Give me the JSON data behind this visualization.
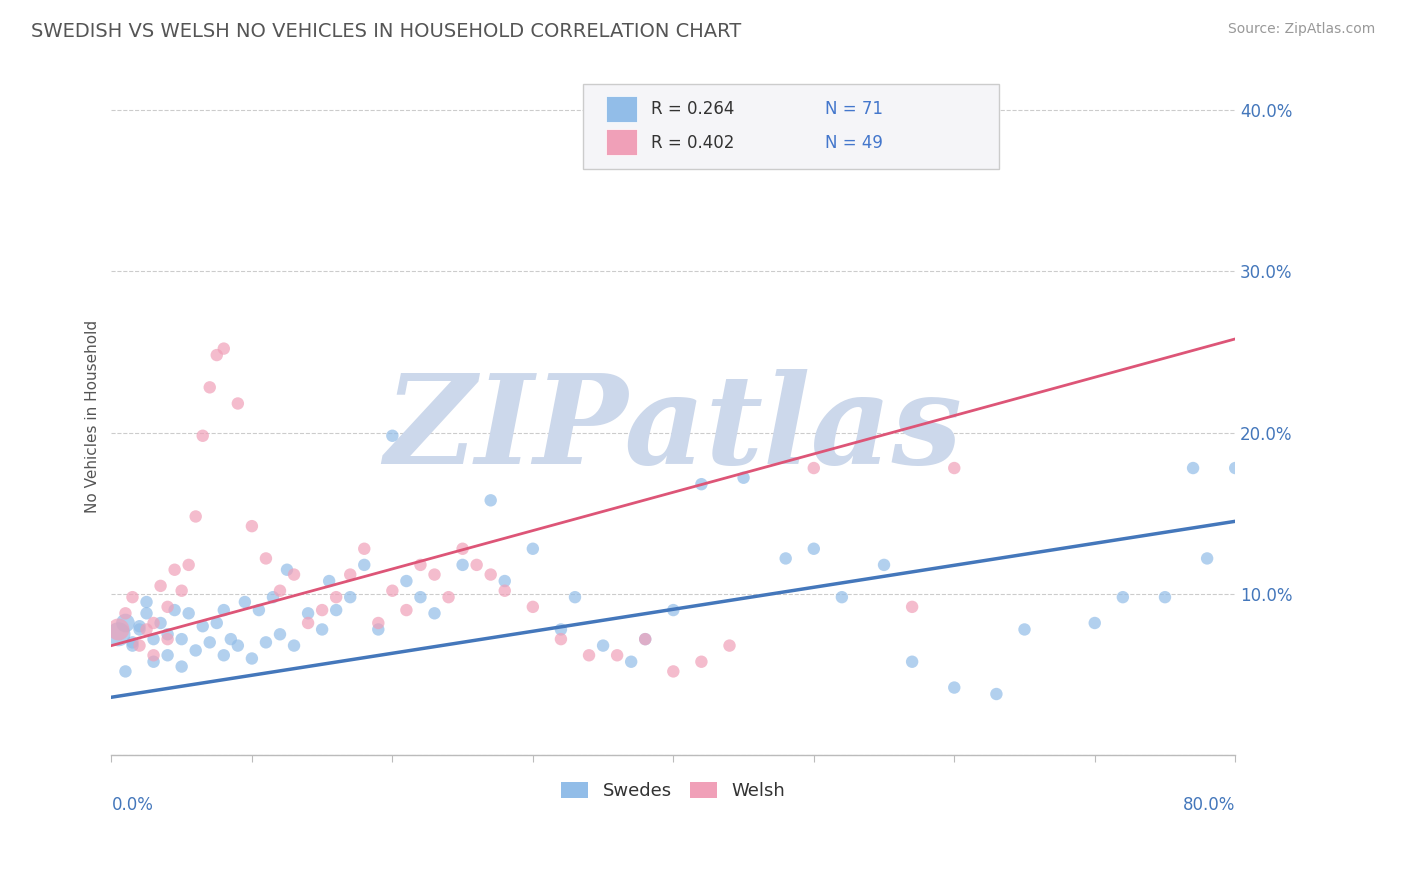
{
  "title": "SWEDISH VS WELSH NO VEHICLES IN HOUSEHOLD CORRELATION CHART",
  "source_text": "Source: ZipAtlas.com",
  "ylabel": "No Vehicles in Household",
  "xlim": [
    0.0,
    0.8
  ],
  "ylim": [
    0.0,
    0.42
  ],
  "yticks": [
    0.0,
    0.1,
    0.2,
    0.3,
    0.4
  ],
  "ytick_labels": [
    "",
    "10.0%",
    "20.0%",
    "30.0%",
    "40.0%"
  ],
  "xticks": [
    0.0,
    0.1,
    0.2,
    0.3,
    0.4,
    0.5,
    0.6,
    0.7,
    0.8
  ],
  "background_color": "#ffffff",
  "grid_color": "#cccccc",
  "watermark_text": "ZIPatlas",
  "watermark_color": "#ccd8eb",
  "blue_color": "#92bde8",
  "pink_color": "#f0a0b8",
  "line_blue": "#4477bb",
  "line_pink": "#dd5577",
  "legend_R_blue": "R = 0.264",
  "legend_N_blue": "N = 71",
  "legend_R_pink": "R = 0.402",
  "legend_N_pink": "N = 49",
  "legend_label_blue": "Swedes",
  "legend_label_pink": "Welsh",
  "blue_line_x0": 0.0,
  "blue_line_y0": 0.036,
  "blue_line_x1": 0.8,
  "blue_line_y1": 0.145,
  "pink_line_x0": 0.0,
  "pink_line_y0": 0.068,
  "pink_line_x1": 0.8,
  "pink_line_y1": 0.258,
  "blue_scatter_x": [
    0.005,
    0.01,
    0.015,
    0.02,
    0.025,
    0.01,
    0.015,
    0.02,
    0.025,
    0.03,
    0.03,
    0.035,
    0.04,
    0.04,
    0.045,
    0.05,
    0.05,
    0.055,
    0.06,
    0.065,
    0.07,
    0.075,
    0.08,
    0.08,
    0.085,
    0.09,
    0.095,
    0.1,
    0.105,
    0.11,
    0.115,
    0.12,
    0.125,
    0.13,
    0.14,
    0.15,
    0.155,
    0.16,
    0.17,
    0.18,
    0.19,
    0.2,
    0.21,
    0.22,
    0.23,
    0.25,
    0.27,
    0.28,
    0.3,
    0.32,
    0.33,
    0.35,
    0.37,
    0.38,
    0.4,
    0.42,
    0.45,
    0.48,
    0.5,
    0.52,
    0.55,
    0.57,
    0.6,
    0.63,
    0.65,
    0.7,
    0.72,
    0.75,
    0.77,
    0.78,
    0.8
  ],
  "blue_scatter_y": [
    0.075,
    0.082,
    0.068,
    0.078,
    0.095,
    0.052,
    0.07,
    0.08,
    0.088,
    0.058,
    0.072,
    0.082,
    0.062,
    0.075,
    0.09,
    0.055,
    0.072,
    0.088,
    0.065,
    0.08,
    0.07,
    0.082,
    0.062,
    0.09,
    0.072,
    0.068,
    0.095,
    0.06,
    0.09,
    0.07,
    0.098,
    0.075,
    0.115,
    0.068,
    0.088,
    0.078,
    0.108,
    0.09,
    0.098,
    0.118,
    0.078,
    0.198,
    0.108,
    0.098,
    0.088,
    0.118,
    0.158,
    0.108,
    0.128,
    0.078,
    0.098,
    0.068,
    0.058,
    0.072,
    0.09,
    0.168,
    0.172,
    0.122,
    0.128,
    0.098,
    0.118,
    0.058,
    0.042,
    0.038,
    0.078,
    0.082,
    0.098,
    0.098,
    0.178,
    0.122,
    0.178
  ],
  "blue_scatter_sizes": [
    300,
    180,
    80,
    80,
    80,
    80,
    80,
    80,
    80,
    80,
    80,
    80,
    80,
    80,
    80,
    80,
    80,
    80,
    80,
    80,
    80,
    80,
    80,
    80,
    80,
    80,
    80,
    80,
    80,
    80,
    80,
    80,
    80,
    80,
    80,
    80,
    80,
    80,
    80,
    80,
    80,
    80,
    80,
    80,
    80,
    80,
    80,
    80,
    80,
    80,
    80,
    80,
    80,
    80,
    80,
    80,
    80,
    80,
    80,
    80,
    80,
    80,
    80,
    80,
    80,
    80,
    80,
    80,
    80,
    80,
    80
  ],
  "pink_scatter_x": [
    0.005,
    0.01,
    0.015,
    0.02,
    0.025,
    0.03,
    0.03,
    0.035,
    0.04,
    0.04,
    0.045,
    0.05,
    0.055,
    0.06,
    0.065,
    0.07,
    0.075,
    0.08,
    0.09,
    0.1,
    0.11,
    0.12,
    0.13,
    0.14,
    0.15,
    0.16,
    0.17,
    0.18,
    0.19,
    0.2,
    0.21,
    0.22,
    0.23,
    0.24,
    0.25,
    0.26,
    0.27,
    0.28,
    0.3,
    0.32,
    0.34,
    0.36,
    0.38,
    0.4,
    0.42,
    0.44,
    0.5,
    0.57,
    0.6
  ],
  "pink_scatter_y": [
    0.078,
    0.088,
    0.098,
    0.068,
    0.078,
    0.062,
    0.082,
    0.105,
    0.072,
    0.092,
    0.115,
    0.102,
    0.118,
    0.148,
    0.198,
    0.228,
    0.248,
    0.252,
    0.218,
    0.142,
    0.122,
    0.102,
    0.112,
    0.082,
    0.09,
    0.098,
    0.112,
    0.128,
    0.082,
    0.102,
    0.09,
    0.118,
    0.112,
    0.098,
    0.128,
    0.118,
    0.112,
    0.102,
    0.092,
    0.072,
    0.062,
    0.062,
    0.072,
    0.052,
    0.058,
    0.068,
    0.178,
    0.092,
    0.178
  ],
  "pink_scatter_sizes": [
    250,
    80,
    80,
    80,
    80,
    80,
    80,
    80,
    80,
    80,
    80,
    80,
    80,
    80,
    80,
    80,
    80,
    80,
    80,
    80,
    80,
    80,
    80,
    80,
    80,
    80,
    80,
    80,
    80,
    80,
    80,
    80,
    80,
    80,
    80,
    80,
    80,
    80,
    80,
    80,
    80,
    80,
    80,
    80,
    80,
    80,
    80,
    80,
    80
  ]
}
